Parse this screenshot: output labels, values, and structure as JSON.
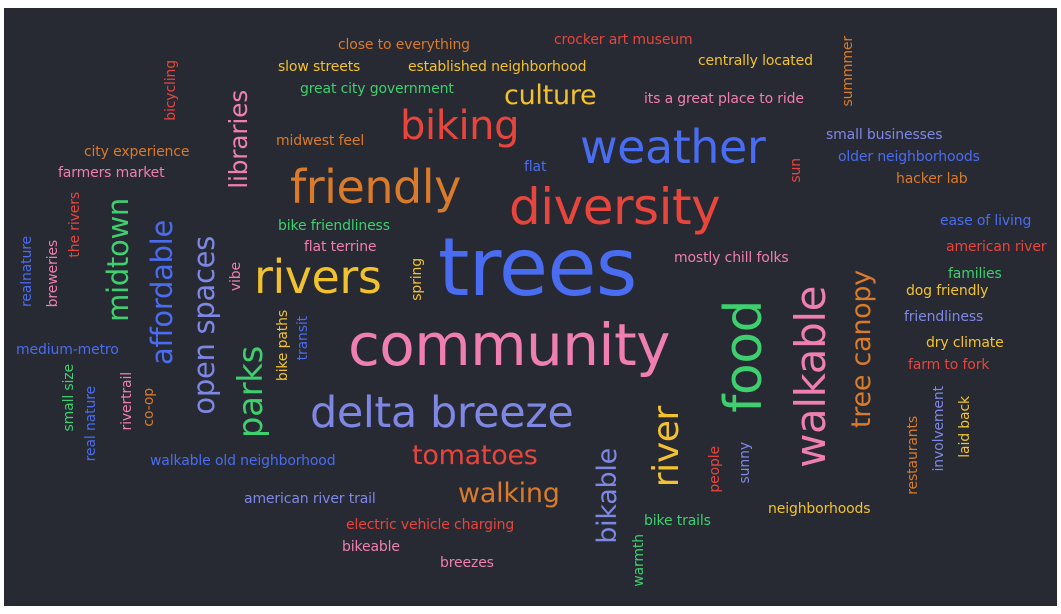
{
  "palette": {
    "red": "#e8453c",
    "orange": "#d97b2a",
    "yellow": "#f2c22e",
    "green": "#3ecf6e",
    "blue": "#4a6cf0",
    "periwinkle": "#7f87e4",
    "pink": "#ef7fb0",
    "background": "#272a33"
  },
  "words": {
    "trees": "trees",
    "community": "community",
    "delta_breeze": "delta breeze",
    "weather": "weather",
    "diversity": "diversity",
    "friendly": "friendly",
    "rivers": "rivers",
    "biking": "biking",
    "food": "food",
    "walkable": "walkable",
    "river": "river",
    "tree_canopy": "tree canopy",
    "parks": "parks",
    "open_spaces": "open spaces",
    "affordable": "affordable",
    "midtown": "midtown",
    "libraries": "libraries",
    "culture": "culture",
    "tomatoes": "tomatoes",
    "walking": "walking",
    "bikable": "bikable",
    "close_to_everything": "close to everything",
    "crocker_art_museum": "crocker art museum",
    "slow_streets": "slow streets",
    "established_neighborhood": "established neighborhood",
    "centrally_located": "centrally located",
    "great_city_government": "great city government",
    "its_a_great_place_to_ride": "its a great place to ride",
    "summmer": "summmer",
    "bicycling": "bicycling",
    "midwest_feel": "midwest feel",
    "small_businesses": "small businesses",
    "older_neighborhoods": "older neighborhoods",
    "city_experience": "city experience",
    "flat": "flat",
    "sun": "sun",
    "hacker_lab": "hacker lab",
    "farmers_market": "farmers market",
    "bike_friendliness": "bike friendliness",
    "ease_of_living": "ease of living",
    "flat_terrine": "flat terrine",
    "american_river": "american river",
    "mostly_chill_folks": "mostly chill folks",
    "families": "families",
    "dog_friendly": "dog friendly",
    "friendliness": "friendliness",
    "dry_climate": "dry climate",
    "farm_to_fork": "farm to fork",
    "medium_metro": "medium-metro",
    "walkable_old_neighborhood": "walkable old neighborhood",
    "american_river_trail": "american river trail",
    "electric_vehicle_charging": "electric vehicle charging",
    "bikeable": "bikeable",
    "breezes": "breezes",
    "bike_trails": "bike trails",
    "neighborhoods": "neighborhoods",
    "realnature": "realnature",
    "breweries": "breweries",
    "the_rivers": "the rivers",
    "vibe": "vibe",
    "spring": "spring",
    "bike_paths": "bike paths",
    "transit": "transit",
    "small_size": "small size",
    "real_nature": "real nature",
    "rivertrail": "rivertrail",
    "co_op": "co-op",
    "people": "people",
    "sunny": "sunny",
    "warmth": "warmth",
    "restaurants": "restaurants",
    "involvement": "involvement",
    "laid_back": "laid back"
  }
}
